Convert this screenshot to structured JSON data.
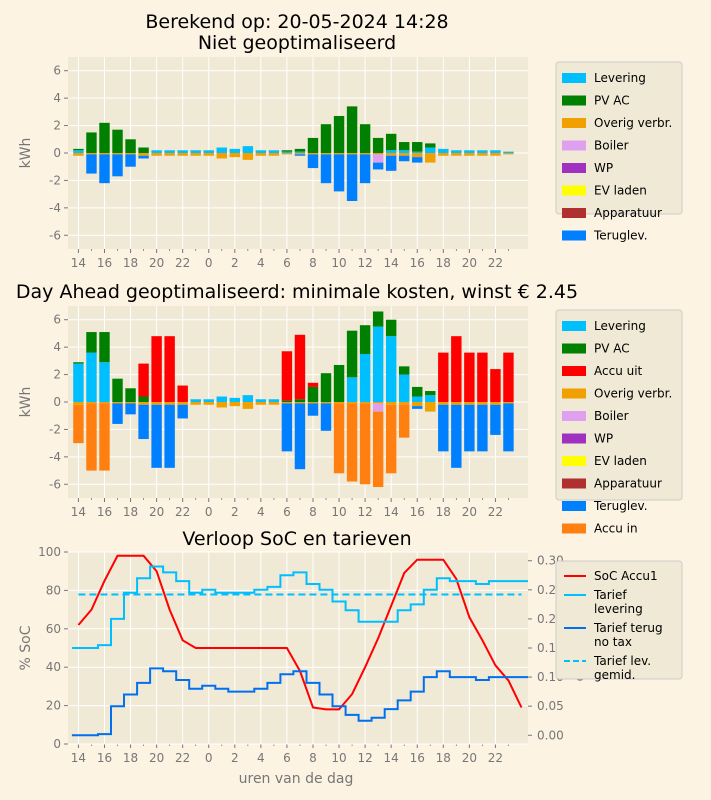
{
  "figure": {
    "suptitle_line1": "Berekend op: 20-05-2024 14:28",
    "x_tick_labels": [
      "14",
      "16",
      "18",
      "20",
      "22",
      "0",
      "2",
      "4",
      "6",
      "8",
      "10",
      "12",
      "14",
      "16",
      "18",
      "20",
      "22"
    ]
  },
  "colors": {
    "background": "#fcf3e3",
    "axes_bg": "#efe9d6",
    "grid": "#ffffff",
    "tick_text": "#777777",
    "levering": "#00bfff",
    "pv_ac": "#008000",
    "accu_uit": "#ff0000",
    "overig": "#f0a000",
    "boiler": "#e0a0f0",
    "wp": "#a030c0",
    "ev": "#ffff00",
    "apparatuur": "#b03030",
    "teruglev": "#0080ff",
    "accu_in": "#ff8010",
    "soc": "#ff0000",
    "tarief_lev": "#00bfff",
    "tarief_terug": "#0070f0",
    "tarief_gemid": "#00bfff"
  },
  "chart_data": [
    {
      "type": "bar",
      "title": "Niet geoptimaliseerd",
      "ylabel": "kWh",
      "ylim": [
        -7,
        7
      ],
      "yticks": [
        -6,
        -4,
        -2,
        0,
        2,
        4,
        6
      ],
      "legend": [
        "Levering",
        "PV AC",
        "Overig verbr.",
        "Boiler",
        "WP",
        "EV laden",
        "Apparatuur",
        "Teruglev."
      ],
      "series": [
        {
          "name": "Levering",
          "values": [
            0.2,
            0,
            0,
            0,
            0,
            0,
            0.2,
            0.2,
            0.2,
            0.2,
            0.2,
            0.4,
            0.3,
            0.5,
            0.2,
            0.2,
            0.1,
            0.1,
            0,
            0,
            0,
            0,
            0,
            0,
            0.2,
            0.2,
            0.1,
            0.4,
            0.3,
            0.2,
            0.2,
            0.2,
            0.2,
            0.1
          ]
        },
        {
          "name": "PV AC",
          "values": [
            0.1,
            1.5,
            2.2,
            1.7,
            1.0,
            0.4,
            0,
            0,
            0,
            0,
            0,
            0,
            0,
            0,
            0,
            0,
            0.1,
            0.2,
            1.1,
            2.1,
            2.7,
            3.4,
            2.1,
            1.1,
            1.2,
            0.6,
            0.7,
            0.3,
            0,
            0,
            0,
            0,
            0,
            0
          ]
        },
        {
          "name": "Overig verbr.",
          "values": [
            -0.2,
            -0.1,
            -0.1,
            -0.1,
            -0.1,
            -0.2,
            -0.2,
            -0.2,
            -0.2,
            -0.2,
            -0.2,
            -0.4,
            -0.3,
            -0.5,
            -0.2,
            -0.2,
            -0.1,
            -0.1,
            -0.1,
            -0.1,
            -0.1,
            -0.1,
            -0.1,
            -0.1,
            -0.2,
            -0.2,
            -0.3,
            -0.7,
            -0.2,
            -0.2,
            -0.2,
            -0.2,
            -0.2,
            -0.1
          ]
        },
        {
          "name": "Boiler",
          "values": [
            0,
            0,
            0,
            0,
            0,
            0,
            0,
            0,
            0,
            0,
            0,
            0,
            0,
            0,
            0,
            0,
            0,
            0,
            0,
            0,
            0,
            0,
            0,
            -0.6,
            0,
            0,
            0,
            0,
            0,
            0,
            0,
            0,
            0,
            0
          ]
        },
        {
          "name": "WP",
          "values": [
            0,
            0,
            0,
            0,
            0,
            0,
            0,
            0,
            0,
            0,
            0,
            0,
            0,
            0,
            0,
            0,
            0,
            0,
            0,
            0,
            0,
            0,
            0,
            0,
            0,
            0,
            0,
            0,
            0,
            0,
            0,
            0,
            0,
            0
          ]
        },
        {
          "name": "EV laden",
          "values": [
            0,
            0,
            0,
            0,
            0,
            0,
            0,
            0,
            0,
            0,
            0,
            0,
            0,
            0,
            0,
            0,
            0,
            0,
            0,
            0,
            0,
            0,
            0,
            0,
            0,
            0,
            0,
            0,
            0,
            0,
            0,
            0,
            0,
            0
          ]
        },
        {
          "name": "Apparatuur",
          "values": [
            0,
            0,
            0,
            0,
            0,
            0,
            0,
            0,
            0,
            0,
            0,
            0,
            0,
            0,
            0,
            0,
            0,
            0,
            0,
            0,
            0,
            0,
            0,
            0,
            0,
            0,
            0,
            0,
            0,
            0,
            0,
            0,
            0,
            0
          ]
        },
        {
          "name": "Teruglev.",
          "values": [
            0,
            -1.4,
            -2.1,
            -1.6,
            -0.9,
            -0.2,
            0,
            0,
            0,
            0,
            0,
            0,
            0,
            0,
            0,
            0,
            0,
            -0.1,
            -1.0,
            -2.1,
            -2.7,
            -3.4,
            -2.1,
            -0.5,
            -1.1,
            -0.4,
            -0.4,
            0,
            0,
            0,
            0,
            0,
            0,
            0
          ]
        }
      ]
    },
    {
      "type": "bar",
      "title": "Day Ahead geoptimaliseerd: minimale kosten, winst € 2.45",
      "ylabel": "kWh",
      "ylim": [
        -7,
        7
      ],
      "yticks": [
        -6,
        -4,
        -2,
        0,
        2,
        4,
        6
      ],
      "legend": [
        "Levering",
        "PV AC",
        "Accu uit",
        "Overig verbr.",
        "Boiler",
        "WP",
        "EV laden",
        "Apparatuur",
        "Teruglev.",
        "Accu in"
      ],
      "series": [
        {
          "name": "Levering",
          "values": [
            2.8,
            3.6,
            2.9,
            0,
            0,
            0,
            0,
            0,
            0,
            0.2,
            0.2,
            0.4,
            0.3,
            0.5,
            0.2,
            0.2,
            0,
            0,
            0,
            0,
            0,
            1.8,
            3.5,
            5.5,
            4.8,
            2.0,
            0.4,
            0.5,
            0,
            0,
            0,
            0,
            0,
            0
          ]
        },
        {
          "name": "PV AC",
          "values": [
            0.1,
            1.5,
            2.2,
            1.7,
            1.0,
            0.4,
            0,
            0,
            0,
            0,
            0,
            0,
            0,
            0,
            0,
            0,
            0.1,
            0.2,
            1.1,
            2.1,
            2.7,
            3.4,
            2.1,
            1.1,
            1.2,
            0.6,
            0.7,
            0.3,
            0,
            0,
            0,
            0,
            0,
            0
          ]
        },
        {
          "name": "Accu uit",
          "values": [
            0,
            0,
            0,
            0,
            0,
            2.4,
            4.8,
            4.8,
            1.2,
            0,
            0,
            0,
            0,
            0,
            0,
            0,
            3.6,
            4.7,
            0.3,
            0,
            0,
            0,
            0,
            0,
            0,
            0,
            0,
            0,
            3.6,
            4.8,
            3.6,
            3.6,
            2.4,
            3.6
          ]
        },
        {
          "name": "Overig verbr.",
          "values": [
            -0.2,
            -0.1,
            -0.1,
            -0.1,
            -0.1,
            -0.2,
            -0.2,
            -0.2,
            -0.2,
            -0.2,
            -0.2,
            -0.4,
            -0.3,
            -0.5,
            -0.2,
            -0.2,
            -0.1,
            -0.1,
            -0.1,
            -0.1,
            -0.1,
            -0.1,
            -0.1,
            -0.1,
            -0.2,
            -0.2,
            -0.3,
            -0.7,
            -0.2,
            -0.2,
            -0.2,
            -0.2,
            -0.2,
            -0.1
          ]
        },
        {
          "name": "Boiler",
          "values": [
            0,
            0,
            0,
            0,
            0,
            0,
            0,
            0,
            0,
            0,
            0,
            0,
            0,
            0,
            0,
            0,
            0,
            0,
            0,
            0,
            0,
            0,
            0,
            -0.6,
            0,
            0,
            0,
            0,
            0,
            0,
            0,
            0,
            0,
            0
          ]
        },
        {
          "name": "WP",
          "values": [
            0,
            0,
            0,
            0,
            0,
            0,
            0,
            0,
            0,
            0,
            0,
            0,
            0,
            0,
            0,
            0,
            0,
            0,
            0,
            0,
            0,
            0,
            0,
            0,
            0,
            0,
            0,
            0,
            0,
            0,
            0,
            0,
            0,
            0
          ]
        },
        {
          "name": "EV laden",
          "values": [
            0,
            0,
            0,
            0,
            0,
            0,
            0,
            0,
            0,
            0,
            0,
            0,
            0,
            0,
            0,
            0,
            0,
            0,
            0,
            0,
            0,
            0,
            0,
            0,
            0,
            0,
            0,
            0,
            0,
            0,
            0,
            0,
            0,
            0
          ]
        },
        {
          "name": "Apparatuur",
          "values": [
            0,
            0,
            0,
            0,
            0,
            0,
            0,
            0,
            0,
            0,
            0,
            0,
            0,
            0,
            0,
            0,
            0,
            0,
            0,
            0,
            0,
            0,
            0,
            0,
            0,
            0,
            0,
            0,
            0,
            0,
            0,
            0,
            0,
            0
          ]
        },
        {
          "name": "Teruglev.",
          "values": [
            0,
            0,
            0,
            -1.5,
            -0.8,
            -2.5,
            -4.6,
            -4.6,
            -1.0,
            0,
            0,
            0,
            0,
            0,
            0,
            0,
            -3.5,
            -4.8,
            -0.9,
            -2.0,
            0,
            0,
            0,
            0,
            0,
            0,
            -0.2,
            0,
            -3.4,
            -4.6,
            -3.4,
            -3.4,
            -2.2,
            -3.5
          ]
        },
        {
          "name": "Accu in",
          "values": [
            -2.8,
            -4.9,
            -4.9,
            0,
            0,
            0,
            0,
            0,
            0,
            0,
            0,
            0,
            0,
            0,
            0,
            0,
            0,
            0,
            0,
            0,
            -5.1,
            -5.7,
            -5.9,
            -5.5,
            -5.0,
            -2.4,
            0,
            0,
            0,
            0,
            0,
            0,
            0,
            0
          ]
        }
      ]
    },
    {
      "type": "line",
      "title": "Verloop SoC en tarieven",
      "xlabel": "uren van de dag",
      "ylabel": "% SoC",
      "ylabel_right": "euro/kWh",
      "ylim": [
        0,
        100
      ],
      "ylim_right": [
        -0.015,
        0.315
      ],
      "yticks": [
        0,
        20,
        40,
        60,
        80,
        100
      ],
      "yticks_right": [
        "0.00",
        "0.05",
        "0.10",
        "0.15",
        "0.20",
        "0.25",
        "0.30"
      ],
      "legend": [
        "SoC Accu1",
        "Tarief\nlevering",
        "Tarief terug\nno tax",
        "Tarief lev.\ngemid."
      ],
      "series": [
        {
          "name": "SoC Accu1",
          "axis": "left",
          "style": "line",
          "x": [
            0,
            1,
            2,
            3,
            4,
            5,
            6,
            7,
            8,
            9,
            10,
            11,
            12,
            13,
            14,
            15,
            16,
            17,
            18,
            19,
            20,
            21,
            22,
            23,
            24,
            25,
            26,
            27,
            28,
            29,
            30,
            31,
            32,
            33,
            34
          ],
          "values": [
            62,
            70,
            85,
            98,
            98,
            98,
            90,
            70,
            54,
            50,
            50,
            50,
            50,
            50,
            50,
            50,
            50,
            38,
            19,
            18,
            18,
            26,
            40,
            55,
            72,
            89,
            96,
            96,
            96,
            86,
            66,
            54,
            41,
            33,
            19
          ]
        },
        {
          "name": "Tarief\nlevering",
          "axis": "right",
          "style": "step",
          "x": [
            0,
            1,
            2,
            3,
            4,
            5,
            6,
            7,
            8,
            9,
            10,
            11,
            12,
            13,
            14,
            15,
            16,
            17,
            18,
            19,
            20,
            21,
            22,
            23,
            24,
            25,
            26,
            27,
            28,
            29,
            30,
            31,
            32,
            33,
            34
          ],
          "values": [
            0.15,
            0.15,
            0.155,
            0.2,
            0.245,
            0.27,
            0.29,
            0.28,
            0.265,
            0.245,
            0.25,
            0.245,
            0.245,
            0.245,
            0.25,
            0.255,
            0.275,
            0.28,
            0.26,
            0.25,
            0.23,
            0.215,
            0.195,
            0.195,
            0.195,
            0.215,
            0.225,
            0.25,
            0.27,
            0.265,
            0.265,
            0.26,
            0.265,
            0.265,
            0.265
          ]
        },
        {
          "name": "Tarief terug\nno tax",
          "axis": "right",
          "style": "step",
          "x": [
            0,
            1,
            2,
            3,
            4,
            5,
            6,
            7,
            8,
            9,
            10,
            11,
            12,
            13,
            14,
            15,
            16,
            17,
            18,
            19,
            20,
            21,
            22,
            23,
            24,
            25,
            26,
            27,
            28,
            29,
            30,
            31,
            32,
            33,
            34
          ],
          "values": [
            0.0,
            0.0,
            0.002,
            0.05,
            0.07,
            0.09,
            0.115,
            0.11,
            0.095,
            0.08,
            0.085,
            0.08,
            0.075,
            0.075,
            0.08,
            0.09,
            0.105,
            0.11,
            0.09,
            0.07,
            0.05,
            0.035,
            0.025,
            0.03,
            0.045,
            0.06,
            0.075,
            0.1,
            0.11,
            0.1,
            0.1,
            0.095,
            0.1,
            0.1,
            0.1
          ]
        },
        {
          "name": "Tarief lev.\ngemid.",
          "axis": "right",
          "style": "dashed",
          "x": [
            0,
            34
          ],
          "values": [
            0.242,
            0.242
          ]
        }
      ]
    }
  ]
}
